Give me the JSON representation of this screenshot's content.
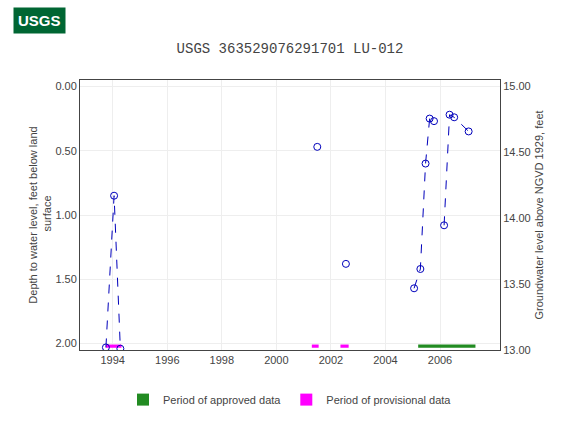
{
  "chart_data": {
    "type": "line",
    "title": "USGS 363529076291701 LU-012",
    "annotations": [
      "USGS"
    ],
    "ylabel": "Depth to water level, feet below land\n surface",
    "y2label": "Groundwater level above NGVD 1929, feet",
    "xlim": [
      1992.8,
      2008.2
    ],
    "xticks": [
      1994,
      1996,
      1998,
      2000,
      2002,
      2004,
      2006
    ],
    "ylim": [
      2.05,
      -0.05
    ],
    "yticks": [
      {
        "value": 0.0,
        "label": "0.00"
      },
      {
        "value": 0.5,
        "label": "0.50"
      },
      {
        "value": 1.0,
        "label": "1.00"
      },
      {
        "value": 1.5,
        "label": "1.50"
      },
      {
        "value": 2.0,
        "label": "2.00"
      }
    ],
    "y2lim": [
      13.0,
      15.05
    ],
    "y2ticks": [
      {
        "value": 13.0,
        "label": "13.00"
      },
      {
        "value": 13.5,
        "label": "13.50"
      },
      {
        "value": 14.0,
        "label": "14.00"
      },
      {
        "value": 14.5,
        "label": "14.50"
      },
      {
        "value": 15.0,
        "label": "15.00"
      }
    ],
    "grid": true,
    "legend": "bottom",
    "series": [
      {
        "type": "line",
        "color": "#0000bb",
        "marker": "circle-open",
        "line_style": "dash",
        "x": [
          1993.75,
          1994.05,
          1994.28
        ],
        "values": [
          2.03,
          0.85,
          2.04
        ]
      },
      {
        "type": "line",
        "color": "#0000bb",
        "marker": "circle-open",
        "line_style": "dash",
        "x": [
          2001.5
        ],
        "values": [
          0.47
        ]
      },
      {
        "type": "line",
        "color": "#0000bb",
        "marker": "circle-open",
        "line_style": "dash",
        "x": [
          2002.55
        ],
        "values": [
          1.38
        ]
      },
      {
        "type": "line",
        "color": "#0000bb",
        "marker": "circle-open",
        "line_style": "dash",
        "x": [
          2005.05,
          2005.28,
          2005.47,
          2005.62,
          2005.78
        ],
        "values": [
          1.57,
          1.42,
          0.6,
          0.25,
          0.27
        ]
      },
      {
        "type": "line",
        "color": "#0000bb",
        "marker": "circle-open",
        "line_style": "dash",
        "x": [
          2006.15,
          2006.35,
          2006.52,
          2007.05
        ],
        "values": [
          1.08,
          0.22,
          0.24,
          0.35
        ]
      },
      {
        "type": "bar",
        "name": "Period of approved data",
        "color": "#228B22",
        "periods": [
          [
            2005.2,
            2007.3
          ]
        ],
        "y": 2.02,
        "height": 0.025
      },
      {
        "type": "bar",
        "name": "Period of provisional data",
        "color": "#ff00ff",
        "periods": [
          [
            1993.75,
            1994.32
          ],
          [
            2001.3,
            2001.55
          ],
          [
            2002.35,
            2002.65
          ]
        ],
        "y": 2.02,
        "height": 0.025
      }
    ]
  }
}
